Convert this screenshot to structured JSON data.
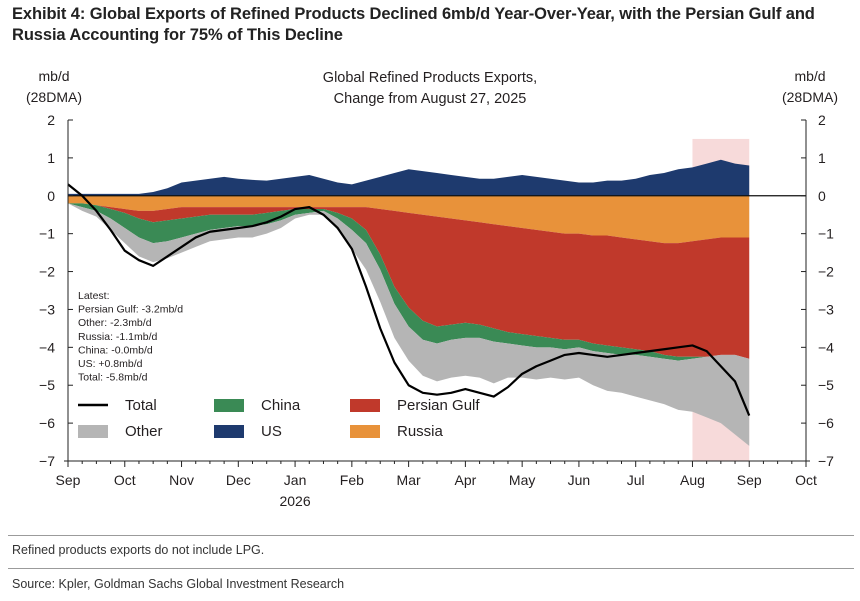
{
  "exhibit": {
    "title": "Exhibit 4: Global Exports of Refined Products Declined 6mb/d Year-Over-Year, with the Persian Gulf and Russia Accounting for 75% of This Decline"
  },
  "footnote": "Refined products exports do not include LPG.",
  "source": "Source: Kpler, Goldman Sachs Global Investment Research",
  "colors": {
    "us": "#1e3a6e",
    "russia": "#e8923a",
    "persian_gulf": "#c0392b",
    "china": "#3a8a55",
    "other": "#b5b5b5",
    "total": "#000000",
    "highlight": "#f6d3d3"
  },
  "chart_data": {
    "type": "area",
    "title": "Global Refined Products Exports,\nChange from August 27, 2025",
    "title_lines": [
      "Global Refined Products Exports,",
      "Change from August 27, 2025"
    ],
    "ylabel_left": [
      "mb/d",
      "(28DMA)"
    ],
    "ylabel_right": [
      "mb/d",
      "(28DMA)"
    ],
    "ylim": [
      -7,
      2
    ],
    "yticks": [
      2,
      1,
      0,
      -1,
      -2,
      -3,
      -4,
      -5,
      -6,
      -7
    ],
    "xticks": [
      "Sep",
      "Oct",
      "Nov",
      "Dec",
      "Jan",
      "Feb",
      "Mar",
      "Apr",
      "May",
      "Jun",
      "Jul",
      "Aug",
      "Sep",
      "Oct"
    ],
    "year_label": {
      "under": "Jan",
      "text": "2026"
    },
    "highlight_span": [
      "Aug",
      "Sep"
    ],
    "x": [
      0.0,
      0.25,
      0.5,
      0.75,
      1.0,
      1.25,
      1.5,
      1.75,
      2.0,
      2.25,
      2.5,
      2.75,
      3.0,
      3.25,
      3.5,
      3.75,
      4.0,
      4.25,
      4.5,
      4.75,
      5.0,
      5.25,
      5.5,
      5.75,
      6.0,
      6.25,
      6.5,
      6.75,
      7.0,
      7.25,
      7.5,
      7.75,
      8.0,
      8.25,
      8.5,
      8.75,
      9.0,
      9.25,
      9.5,
      9.75,
      10.0,
      10.25,
      10.5,
      10.75,
      11.0,
      11.25,
      11.5,
      11.75,
      12.0
    ],
    "series": [
      {
        "name": "US",
        "key": "us",
        "values": [
          0.05,
          0.05,
          0.05,
          0.05,
          0.05,
          0.05,
          0.1,
          0.2,
          0.35,
          0.4,
          0.45,
          0.5,
          0.45,
          0.42,
          0.4,
          0.45,
          0.5,
          0.55,
          0.45,
          0.35,
          0.3,
          0.4,
          0.5,
          0.6,
          0.7,
          0.65,
          0.6,
          0.55,
          0.5,
          0.45,
          0.45,
          0.5,
          0.55,
          0.5,
          0.45,
          0.4,
          0.35,
          0.35,
          0.4,
          0.4,
          0.45,
          0.55,
          0.6,
          0.7,
          0.75,
          0.85,
          0.95,
          0.85,
          0.8
        ]
      },
      {
        "name": "Russia",
        "key": "russia",
        "values": [
          -0.2,
          -0.2,
          -0.25,
          -0.3,
          -0.35,
          -0.4,
          -0.4,
          -0.35,
          -0.3,
          -0.3,
          -0.3,
          -0.3,
          -0.3,
          -0.3,
          -0.3,
          -0.3,
          -0.3,
          -0.3,
          -0.3,
          -0.3,
          -0.3,
          -0.3,
          -0.35,
          -0.4,
          -0.45,
          -0.5,
          -0.55,
          -0.6,
          -0.65,
          -0.7,
          -0.75,
          -0.8,
          -0.85,
          -0.9,
          -0.95,
          -1.0,
          -1.0,
          -1.05,
          -1.05,
          -1.1,
          -1.15,
          -1.2,
          -1.25,
          -1.25,
          -1.2,
          -1.15,
          -1.1,
          -1.1,
          -1.1
        ]
      },
      {
        "name": "Persian Gulf",
        "key": "persian_gulf",
        "values": [
          0.0,
          0.0,
          0.0,
          -0.05,
          -0.1,
          -0.2,
          -0.3,
          -0.3,
          -0.3,
          -0.25,
          -0.2,
          -0.2,
          -0.2,
          -0.2,
          -0.15,
          -0.1,
          -0.05,
          -0.05,
          -0.05,
          -0.15,
          -0.3,
          -0.6,
          -1.2,
          -2.0,
          -2.5,
          -2.8,
          -2.9,
          -2.8,
          -2.7,
          -2.7,
          -2.75,
          -2.8,
          -2.8,
          -2.8,
          -2.8,
          -2.8,
          -2.8,
          -2.85,
          -2.9,
          -2.9,
          -2.9,
          -2.9,
          -2.95,
          -3.0,
          -3.05,
          -3.1,
          -3.1,
          -3.1,
          -3.2
        ]
      },
      {
        "name": "China",
        "key": "china",
        "values": [
          0.0,
          -0.1,
          -0.15,
          -0.25,
          -0.4,
          -0.5,
          -0.55,
          -0.55,
          -0.5,
          -0.45,
          -0.4,
          -0.35,
          -0.3,
          -0.3,
          -0.3,
          -0.25,
          -0.15,
          -0.1,
          -0.05,
          -0.15,
          -0.3,
          -0.35,
          -0.4,
          -0.45,
          -0.5,
          -0.5,
          -0.45,
          -0.4,
          -0.4,
          -0.35,
          -0.35,
          -0.3,
          -0.3,
          -0.3,
          -0.25,
          -0.25,
          -0.2,
          -0.2,
          -0.2,
          -0.2,
          -0.15,
          -0.15,
          -0.1,
          -0.1,
          -0.05,
          0.0,
          0.0,
          0.0,
          0.0
        ]
      },
      {
        "name": "Other",
        "key": "other",
        "values": [
          0.0,
          -0.1,
          -0.15,
          -0.3,
          -0.4,
          -0.5,
          -0.5,
          -0.45,
          -0.4,
          -0.35,
          -0.3,
          -0.3,
          -0.3,
          -0.3,
          -0.25,
          -0.2,
          -0.1,
          -0.05,
          -0.1,
          -0.3,
          -0.5,
          -0.7,
          -0.85,
          -0.9,
          -0.9,
          -0.95,
          -1.0,
          -1.0,
          -1.0,
          -1.05,
          -1.1,
          -0.9,
          -0.85,
          -0.85,
          -0.8,
          -0.8,
          -0.8,
          -0.9,
          -1.0,
          -1.0,
          -1.1,
          -1.15,
          -1.2,
          -1.3,
          -1.4,
          -1.6,
          -1.8,
          -2.1,
          -2.3
        ]
      },
      {
        "name": "Total",
        "key": "total",
        "type": "line",
        "values": [
          0.3,
          0.0,
          -0.4,
          -0.9,
          -1.45,
          -1.7,
          -1.85,
          -1.6,
          -1.35,
          -1.1,
          -0.95,
          -0.9,
          -0.85,
          -0.8,
          -0.7,
          -0.55,
          -0.35,
          -0.3,
          -0.5,
          -0.85,
          -1.4,
          -2.4,
          -3.5,
          -4.4,
          -5.0,
          -5.2,
          -5.25,
          -5.2,
          -5.1,
          -5.2,
          -5.3,
          -5.05,
          -4.7,
          -4.5,
          -4.35,
          -4.2,
          -4.15,
          -4.2,
          -4.25,
          -4.2,
          -4.15,
          -4.1,
          -4.05,
          -4.0,
          -3.95,
          -4.1,
          -4.5,
          -4.9,
          -5.8
        ]
      }
    ],
    "legend": [
      {
        "name": "Total",
        "key": "total",
        "shape": "line"
      },
      {
        "name": "Other",
        "key": "other",
        "shape": "box"
      },
      {
        "name": "China",
        "key": "china",
        "shape": "box"
      },
      {
        "name": "US",
        "key": "us",
        "shape": "box"
      },
      {
        "name": "Persian Gulf",
        "key": "persian_gulf",
        "shape": "box"
      },
      {
        "name": "Russia",
        "key": "russia",
        "shape": "box"
      }
    ],
    "annotation": {
      "lines": [
        "Latest:",
        "Persian Gulf: -3.2mb/d",
        "Other: -2.3mb/d",
        "Russia: -1.1mb/d",
        "China: -0.0mb/d",
        "US: +0.8mb/d",
        "Total: -5.8mb/d"
      ]
    }
  }
}
